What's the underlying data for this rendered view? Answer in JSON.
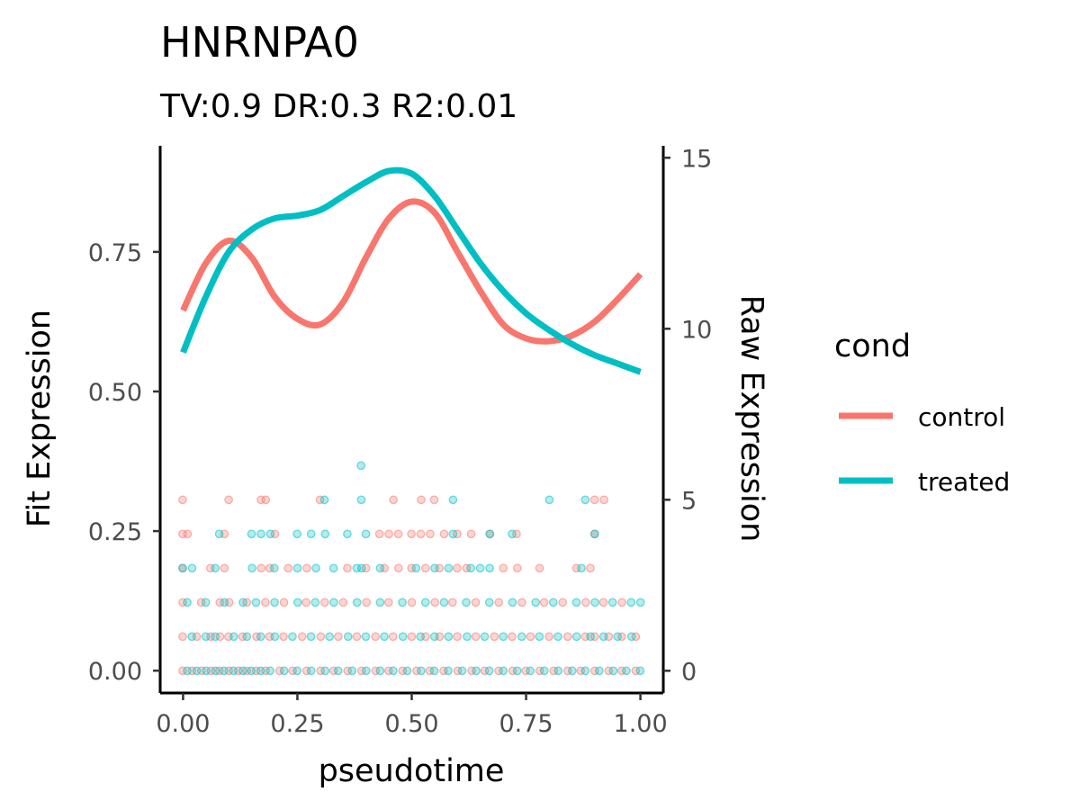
{
  "chart_data": {
    "type": "scatter",
    "title": "HNRNPA0",
    "subtitle": "TV:0.9 DR:0.3 R2:0.01",
    "xlabel": "pseudotime",
    "ylabel": "Fit Expression",
    "y2label": "Raw Expression",
    "xlim": [
      -0.05,
      1.05
    ],
    "ylim": [
      -0.04,
      0.94
    ],
    "y2lim": [
      -0.65,
      15.35
    ],
    "x_ticks": [
      "0.00",
      "0.25",
      "0.50",
      "0.75",
      "1.00"
    ],
    "y_ticks": [
      "0.00",
      "0.25",
      "0.50",
      "0.75"
    ],
    "y2_ticks": [
      "0",
      "5",
      "10",
      "15"
    ],
    "grid": false,
    "legend": {
      "title": "cond",
      "position": "right",
      "items": [
        {
          "label": "control",
          "color": "#F8766D"
        },
        {
          "label": "treated",
          "color": "#00BFC4"
        }
      ]
    },
    "fit_series": [
      {
        "name": "control",
        "color": "#F8766D",
        "x": [
          0.0,
          0.05,
          0.1,
          0.15,
          0.2,
          0.25,
          0.3,
          0.35,
          0.4,
          0.45,
          0.5,
          0.55,
          0.6,
          0.65,
          0.7,
          0.75,
          0.8,
          0.85,
          0.9,
          0.95,
          1.0
        ],
        "y": [
          0.645,
          0.73,
          0.77,
          0.74,
          0.67,
          0.63,
          0.62,
          0.66,
          0.74,
          0.81,
          0.84,
          0.82,
          0.75,
          0.68,
          0.62,
          0.595,
          0.59,
          0.6,
          0.625,
          0.665,
          0.71
        ]
      },
      {
        "name": "treated",
        "color": "#00BFC4",
        "x": [
          0.0,
          0.05,
          0.1,
          0.15,
          0.2,
          0.25,
          0.3,
          0.35,
          0.4,
          0.45,
          0.5,
          0.55,
          0.6,
          0.65,
          0.7,
          0.75,
          0.8,
          0.85,
          0.9,
          0.95,
          1.0
        ],
        "y": [
          0.57,
          0.67,
          0.75,
          0.79,
          0.81,
          0.815,
          0.825,
          0.85,
          0.875,
          0.895,
          0.89,
          0.85,
          0.79,
          0.73,
          0.68,
          0.64,
          0.61,
          0.585,
          0.565,
          0.55,
          0.535
        ]
      }
    ],
    "raw_points_note": "Raw Expression points (right axis) at integer levels 0-6 across pseudotime 0-1, both conditions",
    "raw_points": [
      {
        "cond": "control",
        "level": 0,
        "x": [
          0.0,
          0.02,
          0.04,
          0.06,
          0.08,
          0.1,
          0.12,
          0.14,
          0.16,
          0.18,
          0.21,
          0.24,
          0.27,
          0.3,
          0.33,
          0.36,
          0.39,
          0.42,
          0.45,
          0.48,
          0.51,
          0.54,
          0.57,
          0.6,
          0.63,
          0.66,
          0.69,
          0.72,
          0.75,
          0.78,
          0.81,
          0.84,
          0.87,
          0.9,
          0.93,
          0.96,
          0.99
        ]
      },
      {
        "cond": "treated",
        "level": 0,
        "x": [
          0.01,
          0.03,
          0.05,
          0.07,
          0.09,
          0.11,
          0.13,
          0.15,
          0.17,
          0.19,
          0.22,
          0.25,
          0.28,
          0.31,
          0.34,
          0.37,
          0.4,
          0.43,
          0.46,
          0.49,
          0.52,
          0.55,
          0.58,
          0.61,
          0.64,
          0.67,
          0.7,
          0.73,
          0.76,
          0.79,
          0.82,
          0.85,
          0.88,
          0.91,
          0.94,
          0.97,
          1.0
        ]
      },
      {
        "cond": "control",
        "level": 1,
        "x": [
          0.0,
          0.03,
          0.06,
          0.08,
          0.1,
          0.13,
          0.16,
          0.19,
          0.22,
          0.26,
          0.3,
          0.34,
          0.38,
          0.42,
          0.46,
          0.5,
          0.53,
          0.56,
          0.6,
          0.64,
          0.68,
          0.72,
          0.76,
          0.8,
          0.84,
          0.88,
          0.9,
          0.93,
          0.96,
          0.99
        ]
      },
      {
        "cond": "treated",
        "level": 1,
        "x": [
          0.02,
          0.05,
          0.07,
          0.11,
          0.14,
          0.17,
          0.2,
          0.24,
          0.28,
          0.32,
          0.36,
          0.4,
          0.44,
          0.48,
          0.52,
          0.55,
          0.58,
          0.62,
          0.66,
          0.7,
          0.74,
          0.78,
          0.82,
          0.86,
          0.89,
          0.92,
          0.95,
          0.98
        ]
      },
      {
        "cond": "control",
        "level": 2,
        "x": [
          0.0,
          0.04,
          0.08,
          0.1,
          0.14,
          0.18,
          0.22,
          0.27,
          0.31,
          0.35,
          0.4,
          0.45,
          0.5,
          0.55,
          0.59,
          0.64,
          0.69,
          0.74,
          0.79,
          0.83,
          0.88,
          0.92,
          0.96
        ]
      },
      {
        "cond": "treated",
        "level": 2,
        "x": [
          0.01,
          0.05,
          0.09,
          0.13,
          0.16,
          0.2,
          0.25,
          0.29,
          0.33,
          0.38,
          0.43,
          0.48,
          0.53,
          0.57,
          0.62,
          0.67,
          0.72,
          0.77,
          0.81,
          0.86,
          0.9,
          0.94,
          0.98,
          1.0
        ]
      },
      {
        "cond": "control",
        "level": 3,
        "x": [
          0.0,
          0.06,
          0.09,
          0.17,
          0.19,
          0.23,
          0.27,
          0.36,
          0.4,
          0.44,
          0.47,
          0.5,
          0.53,
          0.56,
          0.6,
          0.62,
          0.7,
          0.73,
          0.78,
          0.86,
          0.89
        ]
      },
      {
        "cond": "treated",
        "level": 3,
        "x": [
          0.0,
          0.02,
          0.07,
          0.15,
          0.2,
          0.25,
          0.29,
          0.33,
          0.38,
          0.39,
          0.43,
          0.51,
          0.55,
          0.58,
          0.63,
          0.65,
          0.67,
          0.87
        ]
      },
      {
        "cond": "control",
        "level": 4,
        "x": [
          0.0,
          0.01,
          0.09,
          0.2,
          0.43,
          0.45,
          0.47,
          0.5,
          0.52,
          0.54,
          0.57,
          0.6,
          0.63,
          0.67,
          0.73,
          0.9
        ]
      },
      {
        "cond": "treated",
        "level": 4,
        "x": [
          0.08,
          0.15,
          0.17,
          0.19,
          0.25,
          0.28,
          0.31,
          0.36,
          0.4,
          0.59,
          0.67,
          0.72,
          0.9
        ]
      },
      {
        "cond": "control",
        "level": 5,
        "x": [
          0.0,
          0.1,
          0.17,
          0.18,
          0.3,
          0.46,
          0.52,
          0.55,
          0.9,
          0.92
        ]
      },
      {
        "cond": "treated",
        "level": 5,
        "x": [
          0.31,
          0.39,
          0.59,
          0.8,
          0.88
        ]
      },
      {
        "cond": "treated",
        "level": 6,
        "x": [
          0.39
        ]
      }
    ]
  }
}
